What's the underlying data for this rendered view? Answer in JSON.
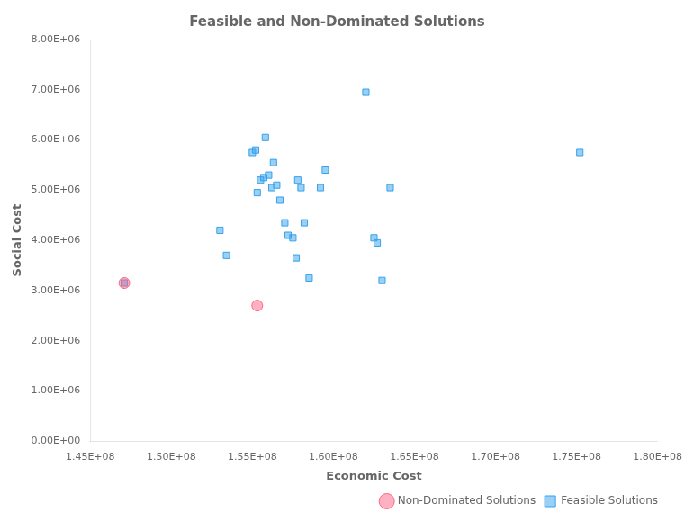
{
  "chart_data": {
    "type": "scatter",
    "title": "Feasible and Non-Dominated Solutions",
    "xlabel": "Economic Cost",
    "ylabel": "Social Cost",
    "xlim": [
      145000000.0,
      180000000.0
    ],
    "ylim": [
      0,
      8000000.0
    ],
    "xticks": [
      {
        "value": 145000000.0,
        "label": "1.45E+08"
      },
      {
        "value": 150000000.0,
        "label": "1.50E+08"
      },
      {
        "value": 155000000.0,
        "label": "1.55E+08"
      },
      {
        "value": 160000000.0,
        "label": "1.60E+08"
      },
      {
        "value": 165000000.0,
        "label": "1.65E+08"
      },
      {
        "value": 170000000.0,
        "label": "1.70E+08"
      },
      {
        "value": 175000000.0,
        "label": "1.75E+08"
      },
      {
        "value": 180000000.0,
        "label": "1.80E+08"
      }
    ],
    "yticks": [
      {
        "value": 0,
        "label": "0.00E+00"
      },
      {
        "value": 1000000.0,
        "label": "1.00E+06"
      },
      {
        "value": 2000000.0,
        "label": "2.00E+06"
      },
      {
        "value": 3000000.0,
        "label": "3.00E+06"
      },
      {
        "value": 4000000.0,
        "label": "4.00E+06"
      },
      {
        "value": 5000000.0,
        "label": "5.00E+06"
      },
      {
        "value": 6000000.0,
        "label": "6.00E+06"
      },
      {
        "value": 7000000.0,
        "label": "7.00E+06"
      },
      {
        "value": 8000000.0,
        "label": "8.00E+06"
      }
    ],
    "grid": false,
    "legend": "lower right",
    "series": [
      {
        "name": "Feasible Solutions",
        "marker": "square",
        "x": [
          147100000.0,
          153000000.0,
          153400000.0,
          155000000.0,
          155200000.0,
          155300000.0,
          155500000.0,
          155700000.0,
          155800000.0,
          156000000.0,
          156200000.0,
          156300000.0,
          156500000.0,
          156700000.0,
          157000000.0,
          157200000.0,
          157500000.0,
          157700000.0,
          157800000.0,
          158000000.0,
          158200000.0,
          158500000.0,
          159200000.0,
          159500000.0,
          162000000.0,
          162500000.0,
          162700000.0,
          163000000.0,
          163500000.0,
          175200000.0
        ],
        "values": [
          3150000.0,
          4200000.0,
          3700000.0,
          5750000.0,
          5800000.0,
          4950000.0,
          5200000.0,
          5250000.0,
          6050000.0,
          5300000.0,
          5050000.0,
          5550000.0,
          5100000.0,
          4800000.0,
          4350000.0,
          4100000.0,
          4050000.0,
          3650000.0,
          5200000.0,
          5050000.0,
          4350000.0,
          3250000.0,
          5050000.0,
          5400000.0,
          6950000.0,
          4050000.0,
          3950000.0,
          3200000.0,
          5050000.0,
          5750000.0
        ]
      },
      {
        "name": "Non-Dominated\nSolutions",
        "marker": "circle",
        "x": [
          147100000.0,
          155300000.0
        ],
        "values": [
          3150000.0,
          2700000.0
        ]
      }
    ]
  }
}
